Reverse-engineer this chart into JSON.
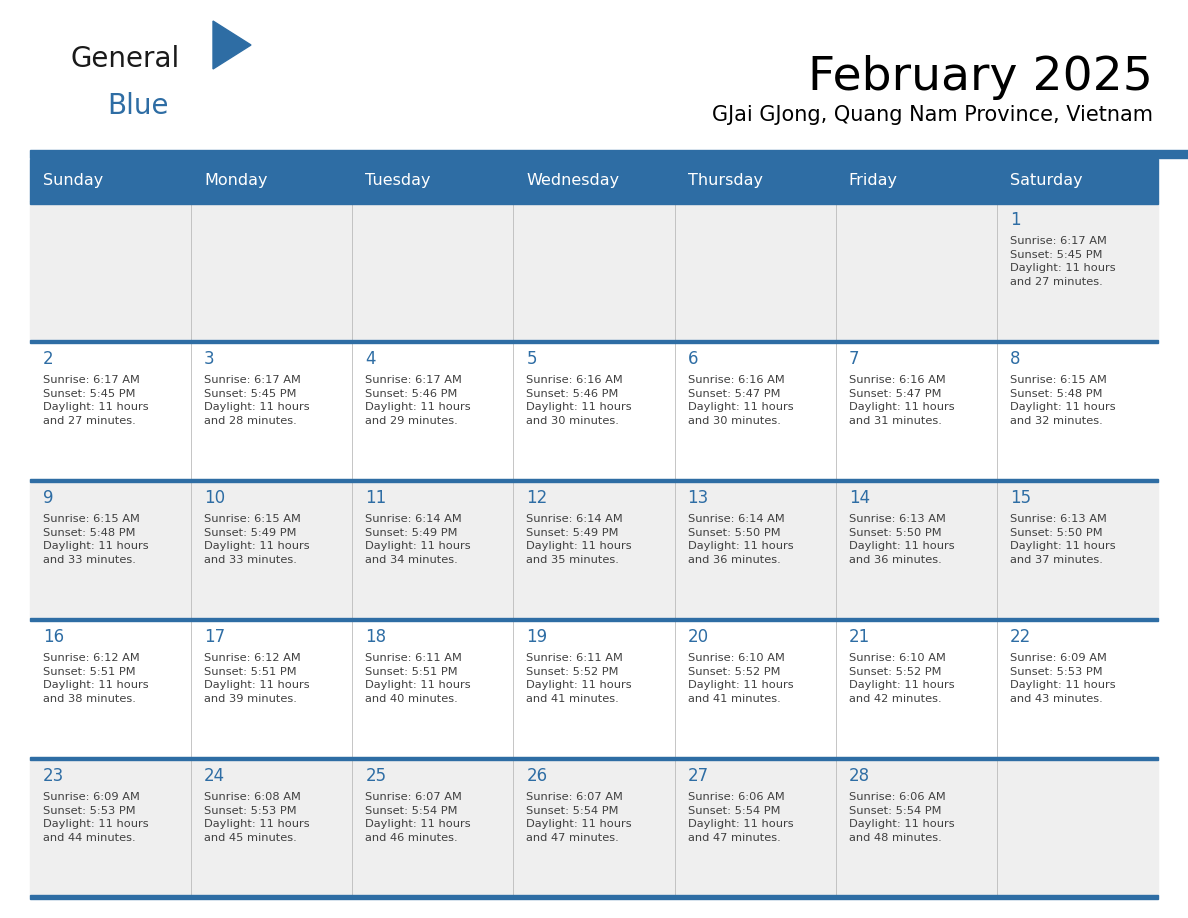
{
  "title": "February 2025",
  "subtitle": "GJai GJong, Quang Nam Province, Vietnam",
  "header_bg_color": "#2E6DA4",
  "header_text_color": "#FFFFFF",
  "cell_bg_even": "#EFEFEF",
  "cell_bg_odd": "#FFFFFF",
  "day_number_color": "#2E6DA4",
  "text_color": "#404040",
  "border_color": "#2E6DA4",
  "days_of_week": [
    "Sunday",
    "Monday",
    "Tuesday",
    "Wednesday",
    "Thursday",
    "Friday",
    "Saturday"
  ],
  "calendar_data": [
    [
      {
        "day": null,
        "info": null
      },
      {
        "day": null,
        "info": null
      },
      {
        "day": null,
        "info": null
      },
      {
        "day": null,
        "info": null
      },
      {
        "day": null,
        "info": null
      },
      {
        "day": null,
        "info": null
      },
      {
        "day": 1,
        "info": "Sunrise: 6:17 AM\nSunset: 5:45 PM\nDaylight: 11 hours\nand 27 minutes."
      }
    ],
    [
      {
        "day": 2,
        "info": "Sunrise: 6:17 AM\nSunset: 5:45 PM\nDaylight: 11 hours\nand 27 minutes."
      },
      {
        "day": 3,
        "info": "Sunrise: 6:17 AM\nSunset: 5:45 PM\nDaylight: 11 hours\nand 28 minutes."
      },
      {
        "day": 4,
        "info": "Sunrise: 6:17 AM\nSunset: 5:46 PM\nDaylight: 11 hours\nand 29 minutes."
      },
      {
        "day": 5,
        "info": "Sunrise: 6:16 AM\nSunset: 5:46 PM\nDaylight: 11 hours\nand 30 minutes."
      },
      {
        "day": 6,
        "info": "Sunrise: 6:16 AM\nSunset: 5:47 PM\nDaylight: 11 hours\nand 30 minutes."
      },
      {
        "day": 7,
        "info": "Sunrise: 6:16 AM\nSunset: 5:47 PM\nDaylight: 11 hours\nand 31 minutes."
      },
      {
        "day": 8,
        "info": "Sunrise: 6:15 AM\nSunset: 5:48 PM\nDaylight: 11 hours\nand 32 minutes."
      }
    ],
    [
      {
        "day": 9,
        "info": "Sunrise: 6:15 AM\nSunset: 5:48 PM\nDaylight: 11 hours\nand 33 minutes."
      },
      {
        "day": 10,
        "info": "Sunrise: 6:15 AM\nSunset: 5:49 PM\nDaylight: 11 hours\nand 33 minutes."
      },
      {
        "day": 11,
        "info": "Sunrise: 6:14 AM\nSunset: 5:49 PM\nDaylight: 11 hours\nand 34 minutes."
      },
      {
        "day": 12,
        "info": "Sunrise: 6:14 AM\nSunset: 5:49 PM\nDaylight: 11 hours\nand 35 minutes."
      },
      {
        "day": 13,
        "info": "Sunrise: 6:14 AM\nSunset: 5:50 PM\nDaylight: 11 hours\nand 36 minutes."
      },
      {
        "day": 14,
        "info": "Sunrise: 6:13 AM\nSunset: 5:50 PM\nDaylight: 11 hours\nand 36 minutes."
      },
      {
        "day": 15,
        "info": "Sunrise: 6:13 AM\nSunset: 5:50 PM\nDaylight: 11 hours\nand 37 minutes."
      }
    ],
    [
      {
        "day": 16,
        "info": "Sunrise: 6:12 AM\nSunset: 5:51 PM\nDaylight: 11 hours\nand 38 minutes."
      },
      {
        "day": 17,
        "info": "Sunrise: 6:12 AM\nSunset: 5:51 PM\nDaylight: 11 hours\nand 39 minutes."
      },
      {
        "day": 18,
        "info": "Sunrise: 6:11 AM\nSunset: 5:51 PM\nDaylight: 11 hours\nand 40 minutes."
      },
      {
        "day": 19,
        "info": "Sunrise: 6:11 AM\nSunset: 5:52 PM\nDaylight: 11 hours\nand 41 minutes."
      },
      {
        "day": 20,
        "info": "Sunrise: 6:10 AM\nSunset: 5:52 PM\nDaylight: 11 hours\nand 41 minutes."
      },
      {
        "day": 21,
        "info": "Sunrise: 6:10 AM\nSunset: 5:52 PM\nDaylight: 11 hours\nand 42 minutes."
      },
      {
        "day": 22,
        "info": "Sunrise: 6:09 AM\nSunset: 5:53 PM\nDaylight: 11 hours\nand 43 minutes."
      }
    ],
    [
      {
        "day": 23,
        "info": "Sunrise: 6:09 AM\nSunset: 5:53 PM\nDaylight: 11 hours\nand 44 minutes."
      },
      {
        "day": 24,
        "info": "Sunrise: 6:08 AM\nSunset: 5:53 PM\nDaylight: 11 hours\nand 45 minutes."
      },
      {
        "day": 25,
        "info": "Sunrise: 6:07 AM\nSunset: 5:54 PM\nDaylight: 11 hours\nand 46 minutes."
      },
      {
        "day": 26,
        "info": "Sunrise: 6:07 AM\nSunset: 5:54 PM\nDaylight: 11 hours\nand 47 minutes."
      },
      {
        "day": 27,
        "info": "Sunrise: 6:06 AM\nSunset: 5:54 PM\nDaylight: 11 hours\nand 47 minutes."
      },
      {
        "day": 28,
        "info": "Sunrise: 6:06 AM\nSunset: 5:54 PM\nDaylight: 11 hours\nand 48 minutes."
      },
      {
        "day": null,
        "info": null
      }
    ]
  ],
  "logo_text_general": "General",
  "logo_text_blue": "Blue",
  "logo_color_general": "#1a1a1a",
  "logo_color_blue": "#2E6DA4",
  "logo_triangle_color": "#2E6DA4",
  "fig_width": 11.88,
  "fig_height": 9.18,
  "dpi": 100
}
